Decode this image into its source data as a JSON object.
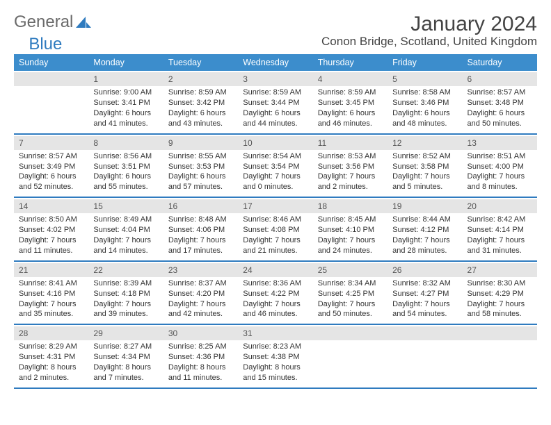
{
  "brand": {
    "part1": "General",
    "part2": "Blue"
  },
  "title": "January 2024",
  "location": "Conon Bridge, Scotland, United Kingdom",
  "colors": {
    "header_bg": "#3c8dcc",
    "header_text": "#ffffff",
    "week_divider": "#2f7bbf",
    "daynum_band_bg": "#e5e5e5",
    "text": "#333333",
    "brand_gray": "#6a6a6a",
    "brand_blue": "#2f7bbf",
    "page_bg": "#ffffff"
  },
  "dayNames": [
    "Sunday",
    "Monday",
    "Tuesday",
    "Wednesday",
    "Thursday",
    "Friday",
    "Saturday"
  ],
  "weeks": [
    [
      null,
      {
        "n": "1",
        "sr": "Sunrise: 9:00 AM",
        "ss": "Sunset: 3:41 PM",
        "d1": "Daylight: 6 hours",
        "d2": "and 41 minutes."
      },
      {
        "n": "2",
        "sr": "Sunrise: 8:59 AM",
        "ss": "Sunset: 3:42 PM",
        "d1": "Daylight: 6 hours",
        "d2": "and 43 minutes."
      },
      {
        "n": "3",
        "sr": "Sunrise: 8:59 AM",
        "ss": "Sunset: 3:44 PM",
        "d1": "Daylight: 6 hours",
        "d2": "and 44 minutes."
      },
      {
        "n": "4",
        "sr": "Sunrise: 8:59 AM",
        "ss": "Sunset: 3:45 PM",
        "d1": "Daylight: 6 hours",
        "d2": "and 46 minutes."
      },
      {
        "n": "5",
        "sr": "Sunrise: 8:58 AM",
        "ss": "Sunset: 3:46 PM",
        "d1": "Daylight: 6 hours",
        "d2": "and 48 minutes."
      },
      {
        "n": "6",
        "sr": "Sunrise: 8:57 AM",
        "ss": "Sunset: 3:48 PM",
        "d1": "Daylight: 6 hours",
        "d2": "and 50 minutes."
      }
    ],
    [
      {
        "n": "7",
        "sr": "Sunrise: 8:57 AM",
        "ss": "Sunset: 3:49 PM",
        "d1": "Daylight: 6 hours",
        "d2": "and 52 minutes."
      },
      {
        "n": "8",
        "sr": "Sunrise: 8:56 AM",
        "ss": "Sunset: 3:51 PM",
        "d1": "Daylight: 6 hours",
        "d2": "and 55 minutes."
      },
      {
        "n": "9",
        "sr": "Sunrise: 8:55 AM",
        "ss": "Sunset: 3:53 PM",
        "d1": "Daylight: 6 hours",
        "d2": "and 57 minutes."
      },
      {
        "n": "10",
        "sr": "Sunrise: 8:54 AM",
        "ss": "Sunset: 3:54 PM",
        "d1": "Daylight: 7 hours",
        "d2": "and 0 minutes."
      },
      {
        "n": "11",
        "sr": "Sunrise: 8:53 AM",
        "ss": "Sunset: 3:56 PM",
        "d1": "Daylight: 7 hours",
        "d2": "and 2 minutes."
      },
      {
        "n": "12",
        "sr": "Sunrise: 8:52 AM",
        "ss": "Sunset: 3:58 PM",
        "d1": "Daylight: 7 hours",
        "d2": "and 5 minutes."
      },
      {
        "n": "13",
        "sr": "Sunrise: 8:51 AM",
        "ss": "Sunset: 4:00 PM",
        "d1": "Daylight: 7 hours",
        "d2": "and 8 minutes."
      }
    ],
    [
      {
        "n": "14",
        "sr": "Sunrise: 8:50 AM",
        "ss": "Sunset: 4:02 PM",
        "d1": "Daylight: 7 hours",
        "d2": "and 11 minutes."
      },
      {
        "n": "15",
        "sr": "Sunrise: 8:49 AM",
        "ss": "Sunset: 4:04 PM",
        "d1": "Daylight: 7 hours",
        "d2": "and 14 minutes."
      },
      {
        "n": "16",
        "sr": "Sunrise: 8:48 AM",
        "ss": "Sunset: 4:06 PM",
        "d1": "Daylight: 7 hours",
        "d2": "and 17 minutes."
      },
      {
        "n": "17",
        "sr": "Sunrise: 8:46 AM",
        "ss": "Sunset: 4:08 PM",
        "d1": "Daylight: 7 hours",
        "d2": "and 21 minutes."
      },
      {
        "n": "18",
        "sr": "Sunrise: 8:45 AM",
        "ss": "Sunset: 4:10 PM",
        "d1": "Daylight: 7 hours",
        "d2": "and 24 minutes."
      },
      {
        "n": "19",
        "sr": "Sunrise: 8:44 AM",
        "ss": "Sunset: 4:12 PM",
        "d1": "Daylight: 7 hours",
        "d2": "and 28 minutes."
      },
      {
        "n": "20",
        "sr": "Sunrise: 8:42 AM",
        "ss": "Sunset: 4:14 PM",
        "d1": "Daylight: 7 hours",
        "d2": "and 31 minutes."
      }
    ],
    [
      {
        "n": "21",
        "sr": "Sunrise: 8:41 AM",
        "ss": "Sunset: 4:16 PM",
        "d1": "Daylight: 7 hours",
        "d2": "and 35 minutes."
      },
      {
        "n": "22",
        "sr": "Sunrise: 8:39 AM",
        "ss": "Sunset: 4:18 PM",
        "d1": "Daylight: 7 hours",
        "d2": "and 39 minutes."
      },
      {
        "n": "23",
        "sr": "Sunrise: 8:37 AM",
        "ss": "Sunset: 4:20 PM",
        "d1": "Daylight: 7 hours",
        "d2": "and 42 minutes."
      },
      {
        "n": "24",
        "sr": "Sunrise: 8:36 AM",
        "ss": "Sunset: 4:22 PM",
        "d1": "Daylight: 7 hours",
        "d2": "and 46 minutes."
      },
      {
        "n": "25",
        "sr": "Sunrise: 8:34 AM",
        "ss": "Sunset: 4:25 PM",
        "d1": "Daylight: 7 hours",
        "d2": "and 50 minutes."
      },
      {
        "n": "26",
        "sr": "Sunrise: 8:32 AM",
        "ss": "Sunset: 4:27 PM",
        "d1": "Daylight: 7 hours",
        "d2": "and 54 minutes."
      },
      {
        "n": "27",
        "sr": "Sunrise: 8:30 AM",
        "ss": "Sunset: 4:29 PM",
        "d1": "Daylight: 7 hours",
        "d2": "and 58 minutes."
      }
    ],
    [
      {
        "n": "28",
        "sr": "Sunrise: 8:29 AM",
        "ss": "Sunset: 4:31 PM",
        "d1": "Daylight: 8 hours",
        "d2": "and 2 minutes."
      },
      {
        "n": "29",
        "sr": "Sunrise: 8:27 AM",
        "ss": "Sunset: 4:34 PM",
        "d1": "Daylight: 8 hours",
        "d2": "and 7 minutes."
      },
      {
        "n": "30",
        "sr": "Sunrise: 8:25 AM",
        "ss": "Sunset: 4:36 PM",
        "d1": "Daylight: 8 hours",
        "d2": "and 11 minutes."
      },
      {
        "n": "31",
        "sr": "Sunrise: 8:23 AM",
        "ss": "Sunset: 4:38 PM",
        "d1": "Daylight: 8 hours",
        "d2": "and 15 minutes."
      },
      null,
      null,
      null
    ]
  ]
}
